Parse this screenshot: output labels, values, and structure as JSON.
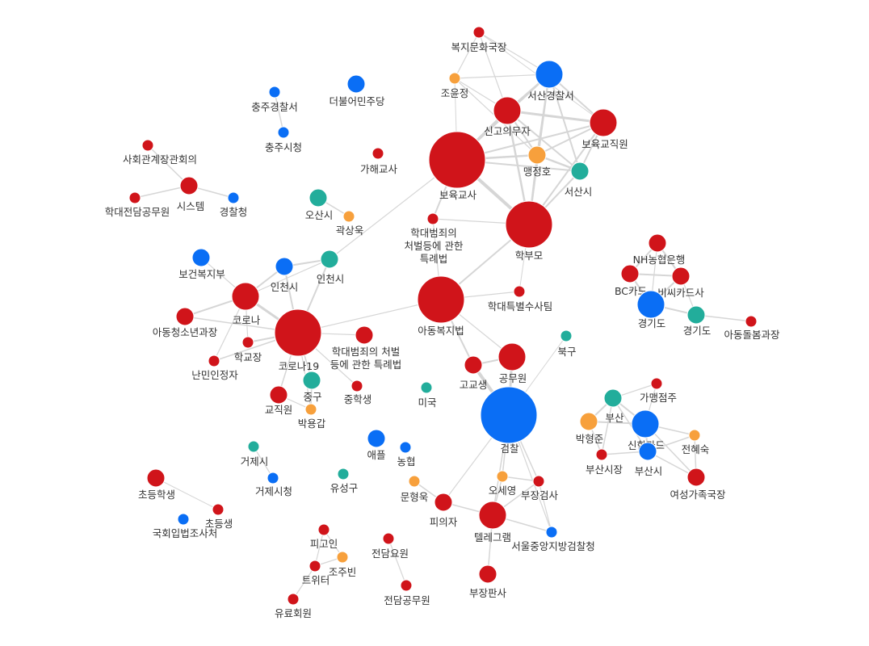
{
  "colors": {
    "red": "#d0141a",
    "blue": "#0a6ef5",
    "teal": "#22ad9b",
    "orange": "#f7a03c",
    "edge": "#d6d6d6",
    "label": "#333333"
  },
  "nodes": [
    {
      "id": "bokjimunhwa",
      "label": "복지문화국장",
      "color": "red",
      "size": "xs"
    },
    {
      "id": "joyunjeong",
      "label": "조윤정",
      "color": "orange",
      "size": "xs"
    },
    {
      "id": "seosangyeong",
      "label": "서산경찰서",
      "color": "blue",
      "size": "m"
    },
    {
      "id": "singo",
      "label": "신고의무자",
      "color": "red",
      "size": "m"
    },
    {
      "id": "bogyojig",
      "label": "보육교직원",
      "color": "red",
      "size": "m"
    },
    {
      "id": "maengjeongho",
      "label": "맹정호",
      "color": "orange",
      "size": "s"
    },
    {
      "id": "seosansi",
      "label": "서산시",
      "color": "teal",
      "size": "s"
    },
    {
      "id": "bogyukyosa",
      "label": "보육교사",
      "color": "red",
      "size": "xxl"
    },
    {
      "id": "hakbumo",
      "label": "학부모",
      "color": "red",
      "size": "xl"
    },
    {
      "id": "chungju_police",
      "label": "충주경찰서",
      "color": "blue",
      "size": "xs"
    },
    {
      "id": "chungju_city",
      "label": "충주시청",
      "color": "blue",
      "size": "xs"
    },
    {
      "id": "minjudang",
      "label": "더불어민주당",
      "color": "blue",
      "size": "s"
    },
    {
      "id": "sahoe",
      "label": "사회관계장관회의",
      "color": "red",
      "size": "xs"
    },
    {
      "id": "gahaekyosa",
      "label": "가해교사",
      "color": "red",
      "size": "xs"
    },
    {
      "id": "system",
      "label": "시스템",
      "color": "red",
      "size": "s"
    },
    {
      "id": "hakdaejeondam",
      "label": "학대전담공무원",
      "color": "red",
      "size": "xs"
    },
    {
      "id": "police_agency",
      "label": "경찰청",
      "color": "blue",
      "size": "xs"
    },
    {
      "id": "osansi",
      "label": "오산시",
      "color": "teal",
      "size": "s"
    },
    {
      "id": "gwaksangwook",
      "label": "곽상욱",
      "color": "orange",
      "size": "xs"
    },
    {
      "id": "teukrye1",
      "label": "학대범죄의 처벌등에 관한 특례법",
      "color": "red",
      "size": "xs"
    },
    {
      "id": "bokjibu",
      "label": "보건복지부",
      "color": "blue",
      "size": "s"
    },
    {
      "id": "incheonsi_blue",
      "label": "인천시",
      "color": "blue",
      "size": "s"
    },
    {
      "id": "incheonsi_teal",
      "label": "인천시",
      "color": "teal",
      "size": "s"
    },
    {
      "id": "corona",
      "label": "코로나",
      "color": "red",
      "size": "m"
    },
    {
      "id": "adongchung",
      "label": "아동청소년과장",
      "color": "red",
      "size": "s"
    },
    {
      "id": "school_head",
      "label": "학교장",
      "color": "red",
      "size": "xs"
    },
    {
      "id": "nanmin",
      "label": "난민인정자",
      "color": "red",
      "size": "xs"
    },
    {
      "id": "corona19",
      "label": "코로나19",
      "color": "red",
      "size": "xl"
    },
    {
      "id": "teukrye2",
      "label": "학대범죄의 처벌 등에 관한 특례법",
      "color": "red",
      "size": "s"
    },
    {
      "id": "adongbokji",
      "label": "아동복지법",
      "color": "red",
      "size": "xl"
    },
    {
      "id": "teukbyeol",
      "label": "학대특별수사팀",
      "color": "red",
      "size": "xs"
    },
    {
      "id": "junggu",
      "label": "중구",
      "color": "teal",
      "size": "s"
    },
    {
      "id": "middle_student",
      "label": "중학생",
      "color": "red",
      "size": "xs"
    },
    {
      "id": "gyojigwon",
      "label": "교직원",
      "color": "red",
      "size": "s"
    },
    {
      "id": "parkyonggap",
      "label": "박용갑",
      "color": "orange",
      "size": "xs"
    },
    {
      "id": "bukgu",
      "label": "북구",
      "color": "teal",
      "size": "xs"
    },
    {
      "id": "high_student",
      "label": "고교생",
      "color": "red",
      "size": "s"
    },
    {
      "id": "official",
      "label": "공무원",
      "color": "red",
      "size": "m"
    },
    {
      "id": "miguk",
      "label": "미국",
      "color": "teal",
      "size": "xs"
    },
    {
      "id": "prosecution",
      "label": "검찰",
      "color": "blue",
      "size": "xxl"
    },
    {
      "id": "nh",
      "label": "NH농협은행",
      "color": "red",
      "size": "s"
    },
    {
      "id": "bccard",
      "label": "BC카드",
      "color": "red",
      "size": "s"
    },
    {
      "id": "bcard",
      "label": "비씨카드사",
      "color": "red",
      "size": "s"
    },
    {
      "id": "gyeonggi_blue",
      "label": "경기도",
      "color": "blue",
      "size": "m"
    },
    {
      "id": "gyeonggi_teal",
      "label": "경기도",
      "color": "teal",
      "size": "s"
    },
    {
      "id": "adongdolbom",
      "label": "아동돌봄과장",
      "color": "red",
      "size": "xs"
    },
    {
      "id": "geoje_si",
      "label": "거제시",
      "color": "teal",
      "size": "xs"
    },
    {
      "id": "geoje_city",
      "label": "거제시청",
      "color": "blue",
      "size": "xs"
    },
    {
      "id": "apple",
      "label": "애플",
      "color": "blue",
      "size": "s"
    },
    {
      "id": "nonghyup",
      "label": "농협",
      "color": "blue",
      "size": "xs"
    },
    {
      "id": "yuseong",
      "label": "유성구",
      "color": "teal",
      "size": "xs"
    },
    {
      "id": "munhyeonguk",
      "label": "문형욱",
      "color": "orange",
      "size": "xs"
    },
    {
      "id": "defendant",
      "label": "피의자",
      "color": "red",
      "size": "s"
    },
    {
      "id": "telegram",
      "label": "텔레그램",
      "color": "red",
      "size": "m"
    },
    {
      "id": "oseyeong",
      "label": "오세영",
      "color": "orange",
      "size": "xs"
    },
    {
      "id": "bujang_geomsa",
      "label": "부장검사",
      "color": "red",
      "size": "xs"
    },
    {
      "id": "seoul_prosecution",
      "label": "서울중앙지방검찰청",
      "color": "blue",
      "size": "xs"
    },
    {
      "id": "bujang_pansa",
      "label": "부장판사",
      "color": "red",
      "size": "s"
    },
    {
      "id": "elementary",
      "label": "초등학생",
      "color": "red",
      "size": "s"
    },
    {
      "id": "chodeungsaeng",
      "label": "초등생",
      "color": "red",
      "size": "xs"
    },
    {
      "id": "national_assembly",
      "label": "국회입법조사처",
      "color": "blue",
      "size": "xs"
    },
    {
      "id": "pigoin",
      "label": "피고인",
      "color": "red",
      "size": "xs"
    },
    {
      "id": "jeondamyowon",
      "label": "전담요원",
      "color": "red",
      "size": "xs"
    },
    {
      "id": "jojubin",
      "label": "조주빈",
      "color": "orange",
      "size": "xs"
    },
    {
      "id": "twitter",
      "label": "트위터",
      "color": "red",
      "size": "xs"
    },
    {
      "id": "yuryo",
      "label": "유료회원",
      "color": "red",
      "size": "xs"
    },
    {
      "id": "jeondam_official",
      "label": "전담공무원",
      "color": "red",
      "size": "xs"
    },
    {
      "id": "gamaengjeom",
      "label": "가맹점주",
      "color": "red",
      "size": "xs"
    },
    {
      "id": "busan_teal",
      "label": "부산",
      "color": "teal",
      "size": "s"
    },
    {
      "id": "parkhyeongjun",
      "label": "박형준",
      "color": "orange",
      "size": "s"
    },
    {
      "id": "shinhan",
      "label": "신한카드",
      "color": "blue",
      "size": "m"
    },
    {
      "id": "jeonhyesuk",
      "label": "전혜숙",
      "color": "orange",
      "size": "xs"
    },
    {
      "id": "busan_mayor",
      "label": "부산시장",
      "color": "red",
      "size": "xs"
    },
    {
      "id": "busansi",
      "label": "부산시",
      "color": "blue",
      "size": "s"
    },
    {
      "id": "yeoseong",
      "label": "여성가족국장",
      "color": "red",
      "size": "s"
    }
  ]
}
